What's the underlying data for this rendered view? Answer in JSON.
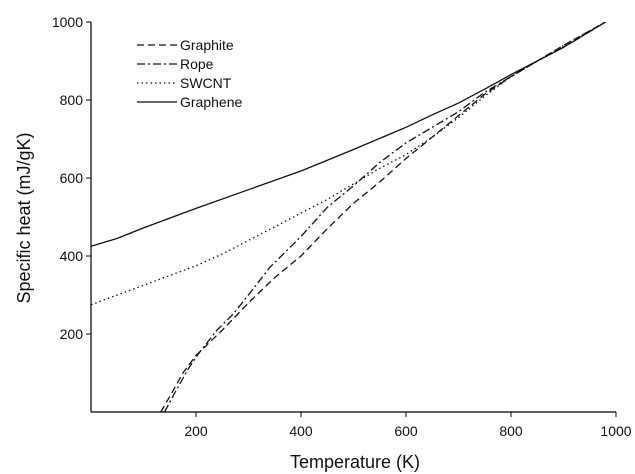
{
  "chart_data": {
    "type": "line",
    "title": "",
    "xlabel": "Temperature (K)",
    "ylabel": "Specific heat (mJ/gK)",
    "xlim": [
      0,
      1000
    ],
    "ylim": [
      0,
      1000
    ],
    "xticks": [
      200,
      400,
      600,
      800,
      1000
    ],
    "yticks": [
      200,
      400,
      600,
      800,
      1000
    ],
    "grid": false,
    "legend_position": "top-left",
    "series": [
      {
        "name": "Graphite",
        "style": "dashed",
        "x": [
          133,
          150,
          175,
          200,
          250,
          300,
          350,
          400,
          450,
          500,
          550,
          600,
          650,
          700,
          750,
          800,
          850,
          900,
          980
        ],
        "y": [
          0,
          40,
          100,
          145,
          210,
          280,
          345,
          400,
          470,
          535,
          590,
          650,
          705,
          760,
          815,
          860,
          900,
          940,
          1000
        ]
      },
      {
        "name": "Rope",
        "style": "dashdot",
        "x": [
          140,
          160,
          185,
          205,
          240,
          270,
          300,
          340,
          400,
          450,
          500,
          550,
          600,
          650,
          700,
          750,
          800,
          850,
          900,
          980
        ],
        "y": [
          0,
          50,
          110,
          150,
          210,
          250,
          300,
          370,
          450,
          525,
          580,
          640,
          690,
          730,
          770,
          820,
          860,
          900,
          935,
          1000
        ]
      },
      {
        "name": "SWCNT",
        "style": "dotted",
        "x": [
          0,
          50,
          100,
          150,
          200,
          250,
          300,
          350,
          400,
          450,
          500,
          550,
          600,
          650,
          700,
          750,
          800,
          850,
          900,
          980
        ],
        "y": [
          275,
          300,
          325,
          350,
          375,
          405,
          440,
          475,
          510,
          545,
          585,
          625,
          660,
          705,
          755,
          810,
          860,
          900,
          940,
          1000
        ]
      },
      {
        "name": "Graphene",
        "style": "solid",
        "x": [
          0,
          50,
          100,
          200,
          300,
          400,
          500,
          600,
          650,
          700,
          750,
          800,
          850,
          900,
          980
        ],
        "y": [
          425,
          445,
          472,
          522,
          570,
          618,
          673,
          730,
          762,
          792,
          828,
          865,
          900,
          935,
          1000
        ]
      }
    ]
  }
}
